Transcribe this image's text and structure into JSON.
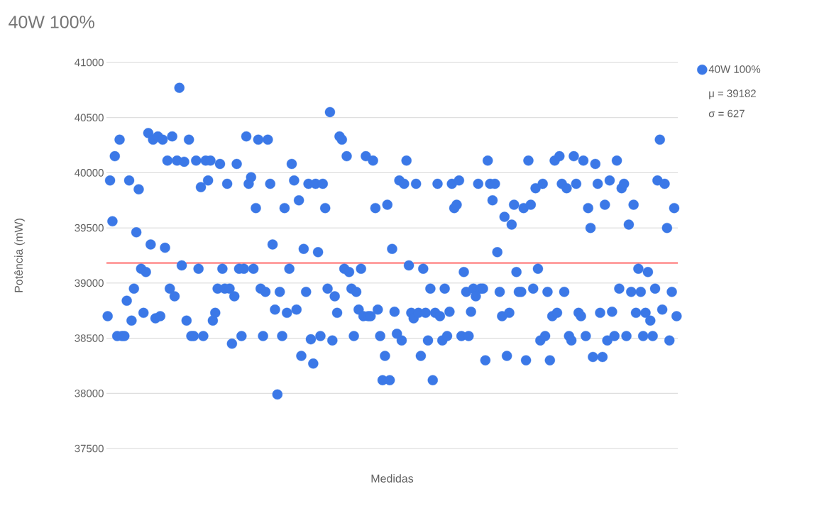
{
  "chart_data": {
    "type": "scatter",
    "title": "40W 100%",
    "xlabel": "Medidas",
    "ylabel": "Potência (mW)",
    "ylim": [
      37500,
      41000
    ],
    "yticks": [
      37500,
      38000,
      38500,
      39000,
      39500,
      40000,
      40500,
      41000
    ],
    "grid": "y",
    "legend": "top right",
    "marker": "circle",
    "annotations": [
      "μ = 39182",
      "σ = 627"
    ],
    "ref_lines": [
      {
        "axis": "y",
        "value": 39182,
        "color": "#ff0000"
      }
    ],
    "series": [
      {
        "name": "40W 100%",
        "color": "#3b78e7",
        "values": [
          38700,
          39930,
          39560,
          40150,
          38520,
          40300,
          38520,
          38520,
          38840,
          39930,
          38660,
          38950,
          39460,
          39850,
          39130,
          38730,
          39100,
          40360,
          39350,
          40300,
          38680,
          40330,
          38700,
          40300,
          39320,
          40110,
          38950,
          40330,
          38880,
          40110,
          40770,
          39160,
          40100,
          38660,
          40300,
          38520,
          38520,
          40110,
          39130,
          39870,
          38520,
          40110,
          39930,
          40110,
          38660,
          38730,
          38950,
          40080,
          39130,
          38950,
          39900,
          38950,
          38450,
          38880,
          40080,
          39130,
          38520,
          39130,
          40330,
          39900,
          39960,
          39130,
          39680,
          40300,
          38950,
          38520,
          38920,
          40300,
          39900,
          39350,
          38760,
          37990,
          38920,
          38520,
          39680,
          38730,
          39130,
          40080,
          39930,
          38760,
          39750,
          38340,
          39310,
          38920,
          39900,
          38490,
          38270,
          39900,
          39280,
          38520,
          39900,
          39680,
          38950,
          40550,
          38480,
          38880,
          38730,
          40330,
          40300,
          39130,
          40150,
          39100,
          38950,
          38520,
          38920,
          38760,
          39130,
          38700,
          40150,
          38700,
          38700,
          40110,
          39680,
          38760,
          38520,
          38120,
          38340,
          39710,
          38120,
          39310,
          38740,
          38540,
          39930,
          38480,
          39900,
          40110,
          39160,
          38730,
          38680,
          39900,
          38730,
          38340,
          39130,
          38730,
          38480,
          38950,
          38120,
          38730,
          39900,
          38700,
          38480,
          38950,
          38520,
          38740,
          39900,
          39680,
          39710,
          39930,
          38520,
          39100,
          38920,
          38520,
          38740,
          38950,
          38880,
          39900,
          38950,
          38950,
          38300,
          40110,
          39900,
          39750,
          39900,
          39280,
          38920,
          38700,
          39600,
          38340,
          38730,
          39530,
          39710,
          39100,
          38920,
          38920,
          39680,
          38300,
          40110,
          39710,
          38950,
          39860,
          39130,
          38480,
          39900,
          38520,
          38920,
          38300,
          38700,
          40110,
          38730,
          40150,
          39900,
          38920,
          39860,
          38520,
          38480,
          40150,
          39900,
          38730,
          38700,
          40110,
          38520,
          39680,
          39500,
          38330,
          40080,
          39900,
          38730,
          38330,
          39710,
          38480,
          39930,
          38740,
          38520,
          40110,
          38950,
          39860,
          39900,
          38520,
          39530,
          38920,
          39710,
          38730,
          39130,
          38920,
          38520,
          38730,
          39100,
          38660,
          38520,
          38950,
          39930,
          40300,
          38760,
          39900,
          39500,
          38480,
          38920,
          39680,
          38700
        ]
      }
    ]
  }
}
